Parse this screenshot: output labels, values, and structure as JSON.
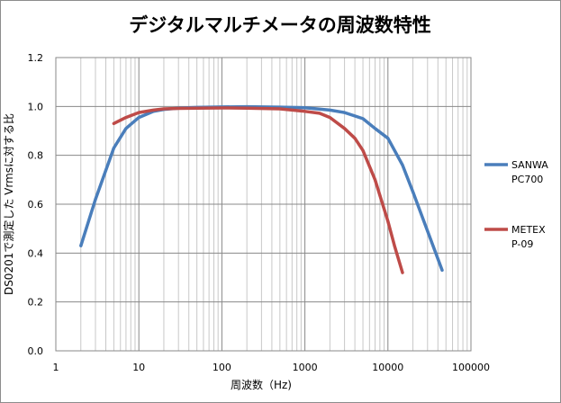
{
  "chart_data": {
    "type": "line",
    "title": "デジタルマルチメータの周波数特性",
    "xlabel": "周波数（Hz)",
    "ylabel": "DS0201で測定した Vrmsに対する比",
    "x_scale": "log",
    "xlim": [
      1,
      100000
    ],
    "ylim": [
      0.0,
      1.2
    ],
    "x_ticks": [
      "1",
      "10",
      "100",
      "1000",
      "10000",
      "100000"
    ],
    "y_ticks": [
      "0.0",
      "0.2",
      "0.4",
      "0.6",
      "0.8",
      "1.0",
      "1.2"
    ],
    "grid": true,
    "legend_position": "right",
    "series": [
      {
        "name_lines": [
          "SANWA",
          "PC700"
        ],
        "color": "#4a7ebb",
        "x": [
          2,
          3,
          5,
          7,
          10,
          15,
          20,
          30,
          50,
          100,
          200,
          500,
          1000,
          2000,
          3000,
          5000,
          7000,
          10000,
          15000,
          20000,
          30000,
          45000
        ],
        "values": [
          0.43,
          0.62,
          0.83,
          0.91,
          0.955,
          0.98,
          0.988,
          0.993,
          0.996,
          0.998,
          0.999,
          0.997,
          0.995,
          0.985,
          0.975,
          0.95,
          0.91,
          0.87,
          0.76,
          0.65,
          0.49,
          0.33
        ]
      },
      {
        "name_lines": [
          "METEX",
          "P-09"
        ],
        "color": "#be4b48",
        "x": [
          5,
          7,
          10,
          15,
          20,
          30,
          50,
          100,
          200,
          500,
          1000,
          1500,
          2000,
          3000,
          4000,
          5000,
          7000,
          10000,
          12000,
          15000
        ],
        "values": [
          0.93,
          0.955,
          0.975,
          0.985,
          0.99,
          0.992,
          0.993,
          0.994,
          0.993,
          0.99,
          0.98,
          0.972,
          0.955,
          0.91,
          0.87,
          0.82,
          0.7,
          0.53,
          0.43,
          0.32
        ]
      }
    ]
  }
}
